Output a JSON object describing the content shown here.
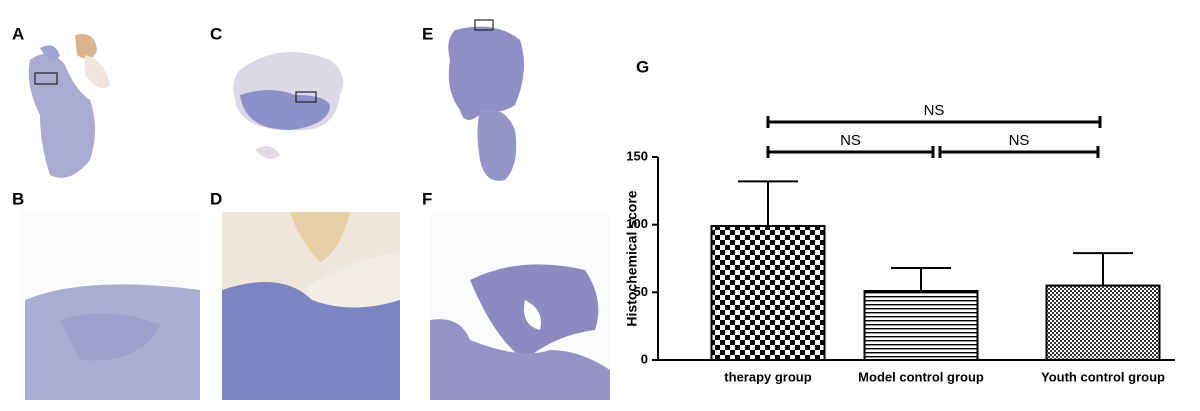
{
  "panel_labels": [
    "A",
    "B",
    "C",
    "D",
    "E",
    "F",
    "G"
  ],
  "chart_data": {
    "type": "bar",
    "categories": [
      "therapy group",
      "Model control group",
      "Youth control group"
    ],
    "values": [
      99,
      51,
      55
    ],
    "errors": [
      33,
      17,
      24
    ],
    "ylabel": "Histochemical score",
    "ylim": [
      0,
      150
    ],
    "yticks": [
      0,
      50,
      100,
      150
    ],
    "annotations": [
      "NS",
      "NS",
      "NS"
    ],
    "color": "#000000"
  }
}
